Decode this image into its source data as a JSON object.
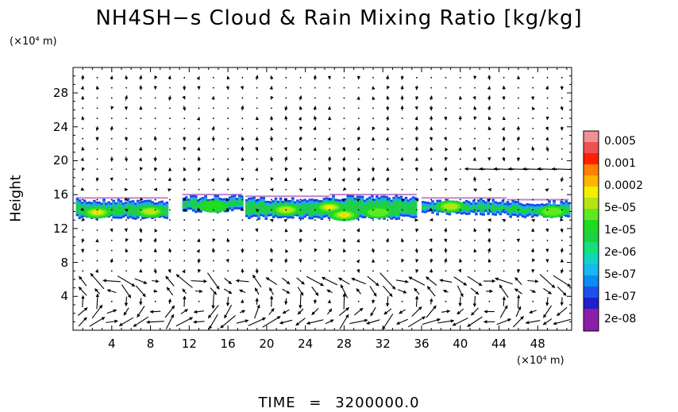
{
  "chart_data": {
    "type": "heatmap",
    "title": "NH4SH−s Cloud & Rain Mixing Ratio [kg/kg]",
    "ylabel": "Height",
    "y_unit": "(×10⁴ m)",
    "x_unit": "(×10⁴ m)",
    "xlim": [
      0,
      51.5
    ],
    "ylim": [
      0,
      31
    ],
    "xticks": [
      {
        "value": 4,
        "label": "4"
      },
      {
        "value": 8,
        "label": "8"
      },
      {
        "value": 12,
        "label": "12"
      },
      {
        "value": 16,
        "label": "16"
      },
      {
        "value": 20,
        "label": "20"
      },
      {
        "value": 24,
        "label": "24"
      },
      {
        "value": 28,
        "label": "28"
      },
      {
        "value": 32,
        "label": "32"
      },
      {
        "value": 36,
        "label": "36"
      },
      {
        "value": 40,
        "label": "40"
      },
      {
        "value": 44,
        "label": "44"
      },
      {
        "value": 48,
        "label": "48"
      }
    ],
    "yticks": [
      {
        "value": 4,
        "label": "4"
      },
      {
        "value": 8,
        "label": "8"
      },
      {
        "value": 12,
        "label": "12"
      },
      {
        "value": 16,
        "label": "16"
      },
      {
        "value": 20,
        "label": "20"
      },
      {
        "value": 24,
        "label": "24"
      },
      {
        "value": 28,
        "label": "28"
      }
    ],
    "colorbar": [
      {
        "label": "",
        "color": "#8b1fa8"
      },
      {
        "label": "2e-08",
        "color": "#8b1fa8"
      },
      {
        "label": "",
        "color": "#2020c8"
      },
      {
        "label": "1e-07",
        "color": "#1e50f0"
      },
      {
        "label": "",
        "color": "#0a8cf0"
      },
      {
        "label": "5e-07",
        "color": "#16b8ee"
      },
      {
        "label": "",
        "color": "#10d4c0"
      },
      {
        "label": "2e-06",
        "color": "#14e07a"
      },
      {
        "label": "",
        "color": "#20d040"
      },
      {
        "label": "1e-05",
        "color": "#20dc20"
      },
      {
        "label": "",
        "color": "#60e820"
      },
      {
        "label": "5e-05",
        "color": "#b4e614"
      },
      {
        "label": "",
        "color": "#f0f000"
      },
      {
        "label": "0.0002",
        "color": "#ffb400"
      },
      {
        "label": "",
        "color": "#ff8000"
      },
      {
        "label": "0.001",
        "color": "#ff2000"
      },
      {
        "label": "",
        "color": "#f05050"
      },
      {
        "label": "0.005",
        "color": "#f09090"
      }
    ],
    "cloud_segments": [
      {
        "x_start": 0.3,
        "x_end": 9.8,
        "y_bottom": 13.0,
        "y_top": 15.6
      },
      {
        "x_start": 11.3,
        "x_end": 17.5,
        "y_bottom": 13.8,
        "y_top": 16.0
      },
      {
        "x_start": 17.8,
        "x_end": 26.5,
        "y_bottom": 13.0,
        "y_top": 15.8
      },
      {
        "x_start": 26.5,
        "x_end": 35.5,
        "y_bottom": 13.0,
        "y_top": 16.0
      },
      {
        "x_start": 36.0,
        "x_end": 44.8,
        "y_bottom": 13.5,
        "y_top": 15.6
      },
      {
        "x_start": 44.8,
        "x_end": 51.2,
        "y_bottom": 13.2,
        "y_top": 15.4
      }
    ],
    "cloud_cores": [
      {
        "x": 2.5,
        "y": 13.9,
        "level": 13
      },
      {
        "x": 8.0,
        "y": 14.0,
        "level": 11
      },
      {
        "x": 14.5,
        "y": 14.6,
        "level": 9
      },
      {
        "x": 22.0,
        "y": 14.2,
        "level": 11
      },
      {
        "x": 26.5,
        "y": 14.5,
        "level": 12
      },
      {
        "x": 28.0,
        "y": 13.6,
        "level": 13
      },
      {
        "x": 31.5,
        "y": 13.9,
        "level": 10
      },
      {
        "x": 39.0,
        "y": 14.6,
        "level": 11
      },
      {
        "x": 49.5,
        "y": 14.0,
        "level": 10
      }
    ],
    "wind_field": {
      "x_start": 1.0,
      "x_step": 1.5,
      "y_start": 1.0,
      "y_step": 1.2,
      "description": "velocity vectors; strong circulation cells below 7, westward jet near 19 for x > 40"
    },
    "time_label": "TIME",
    "time_equals": "=",
    "time_value": "3200000.0"
  }
}
